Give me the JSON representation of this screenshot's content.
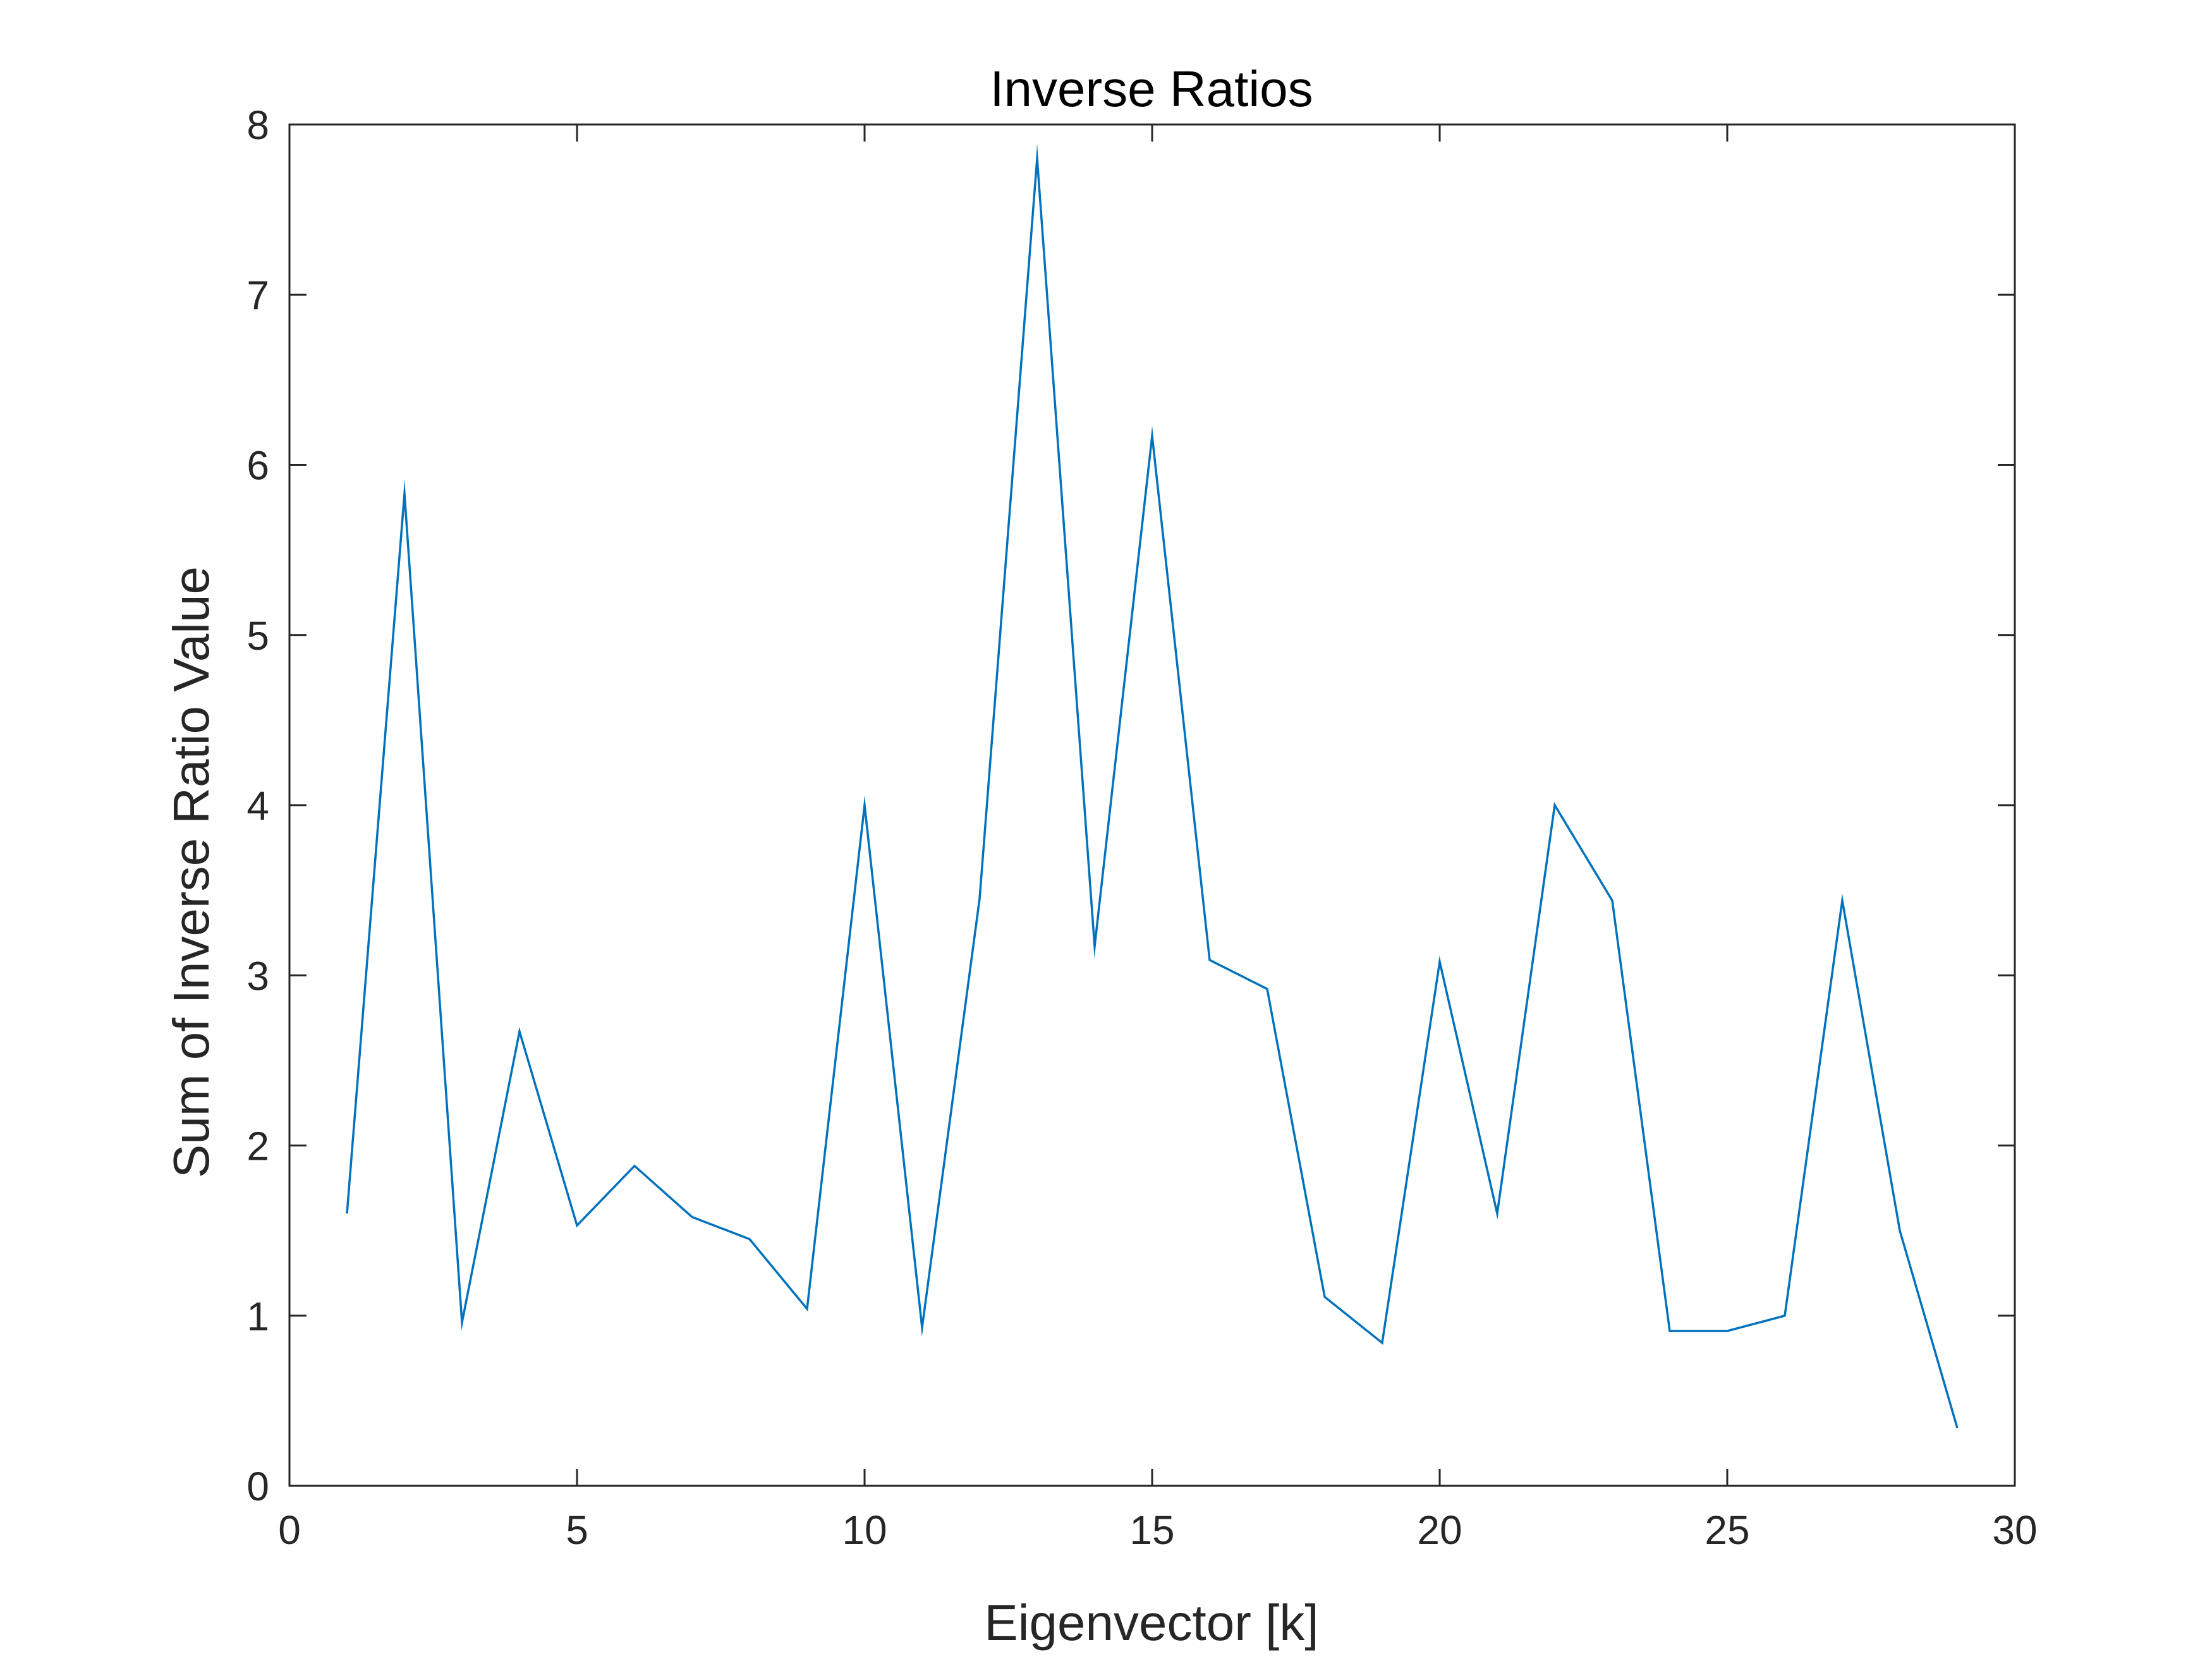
{
  "chart_data": {
    "type": "line",
    "title": "Inverse Ratios",
    "xlabel": "Eigenvector [k]",
    "ylabel": "Sum of Inverse Ratio Value",
    "xlim": [
      0,
      30
    ],
    "ylim": [
      0,
      8
    ],
    "xticks": [
      0,
      5,
      10,
      15,
      20,
      25,
      30
    ],
    "yticks": [
      0,
      1,
      2,
      3,
      4,
      5,
      6,
      7,
      8
    ],
    "grid": false,
    "line_color": "#0072BD",
    "axis_color": "#262626",
    "series": [
      {
        "x": [
          1,
          2,
          3,
          4,
          5,
          6,
          7,
          8,
          9,
          10,
          11,
          12,
          13,
          14,
          15,
          16,
          17,
          18,
          19,
          20,
          21,
          22,
          23,
          24,
          25,
          26,
          27,
          28,
          29
        ],
        "y": [
          1.6,
          5.83,
          0.96,
          2.67,
          1.53,
          1.88,
          1.58,
          1.45,
          1.04,
          4.0,
          0.93,
          3.45,
          7.8,
          3.17,
          6.17,
          3.09,
          2.92,
          1.11,
          0.84,
          3.08,
          1.6,
          4.0,
          3.44,
          0.91,
          0.91,
          1.0,
          3.44,
          1.5,
          0.34
        ]
      }
    ]
  }
}
